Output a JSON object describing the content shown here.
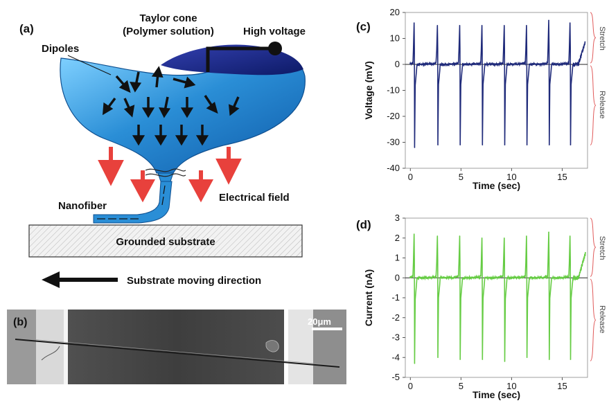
{
  "panel_a": {
    "label": "(a)",
    "taylor_cone": "Taylor cone",
    "polymer_solution": "(Polymer solution)",
    "high_voltage": "High voltage",
    "dipoles": "Dipoles",
    "nanofiber": "Nanofiber",
    "electrical_field": "Electrical field",
    "substrate": "Grounded substrate",
    "moving_direction": "Substrate moving direction",
    "colors": {
      "cone": "#2a8ed6",
      "cone_dark": "#1a2f8a",
      "field_arrow": "#e8413c",
      "dipole": "#111111"
    }
  },
  "panel_b": {
    "label": "(b)",
    "scale_bar": "20μm"
  },
  "chart_data": [
    {
      "panel": "(c)",
      "type": "line",
      "xlabel": "Time (sec)",
      "ylabel": "Voltage (mV)",
      "xlim": [
        -0.5,
        17.5
      ],
      "ylim": [
        -40,
        20
      ],
      "xticks": [
        0,
        5,
        10,
        15
      ],
      "yticks": [
        -40,
        -30,
        -20,
        -10,
        0,
        10,
        20
      ],
      "color": "#1f2a7a",
      "stretch_label": "Stretch",
      "release_label": "Release",
      "peak_times": [
        0.4,
        2.7,
        4.9,
        7.1,
        9.3,
        11.5,
        13.7,
        15.8
      ],
      "positive_peaks": [
        16,
        15,
        15,
        15,
        15,
        15,
        17,
        16
      ],
      "negative_peaks": [
        -32,
        -31,
        -31,
        -31,
        -31,
        -31,
        -31,
        -31
      ],
      "baseline": 0
    },
    {
      "panel": "(d)",
      "type": "line",
      "xlabel": "Time (sec)",
      "ylabel": "Current (nA)",
      "xlim": [
        -0.5,
        17.5
      ],
      "ylim": [
        -5,
        3
      ],
      "xticks": [
        0,
        5,
        10,
        15
      ],
      "yticks": [
        -5,
        -4,
        -3,
        -2,
        -1,
        0,
        1,
        2,
        3
      ],
      "color": "#66cc44",
      "stretch_label": "Stretch",
      "release_label": "Release",
      "peak_times": [
        0.4,
        2.7,
        4.9,
        7.1,
        9.3,
        11.5,
        13.7,
        15.8
      ],
      "positive_peaks": [
        2.2,
        2.1,
        2.1,
        2.0,
        2.0,
        2.1,
        2.3,
        2.1
      ],
      "negative_peaks": [
        -4.3,
        -4.0,
        -4.1,
        -4.1,
        -4.2,
        -4.0,
        -4.1,
        -4.1
      ],
      "baseline": 0
    }
  ]
}
